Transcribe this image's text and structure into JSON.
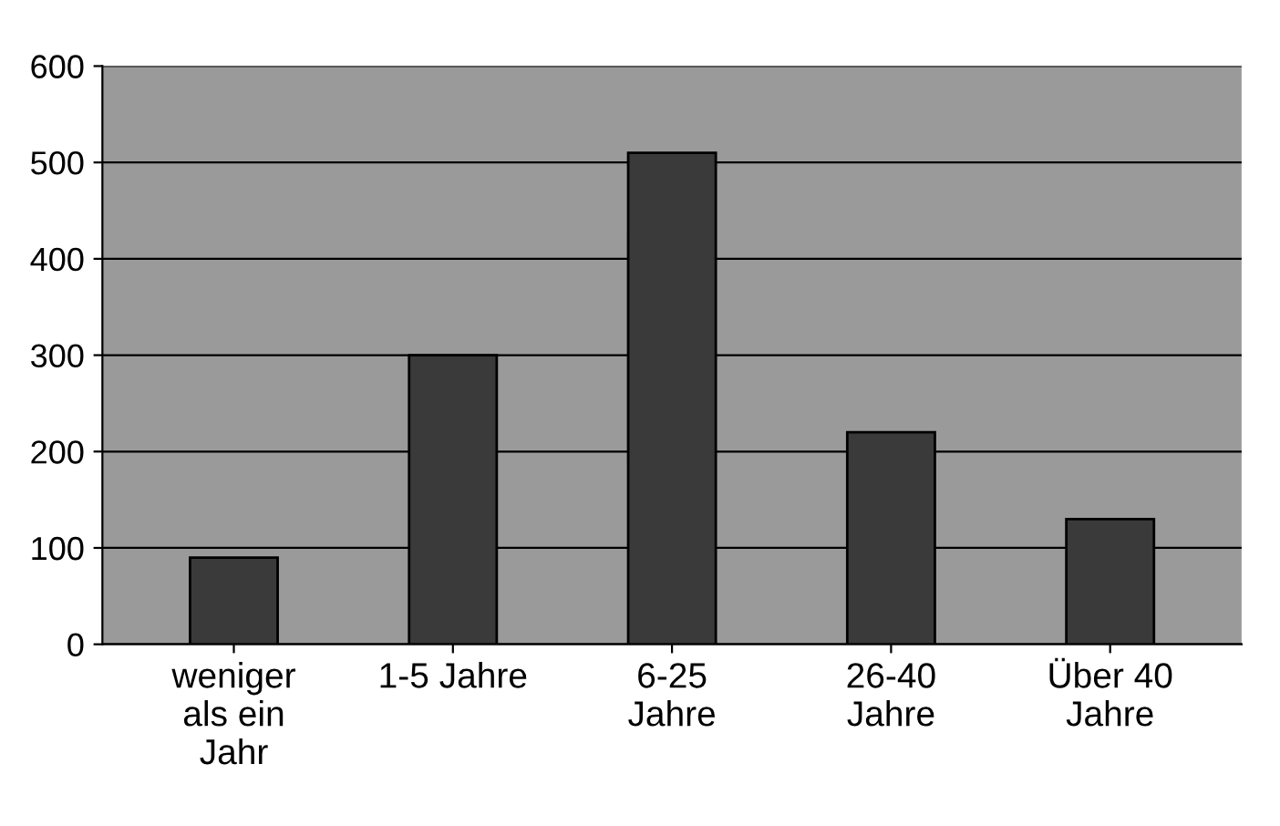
{
  "chart_data": {
    "type": "bar",
    "categories": [
      "weniger\nals ein\nJahr",
      "1-5 Jahre",
      "6-25\nJahre",
      "26-40\nJahre",
      "Über 40\nJahre"
    ],
    "values": [
      90,
      300,
      510,
      220,
      130
    ],
    "color": "#3a3a3a",
    "ylim": [
      0,
      600
    ],
    "yticks": [
      0,
      100,
      200,
      300,
      400,
      500,
      600
    ],
    "grid": "y"
  }
}
